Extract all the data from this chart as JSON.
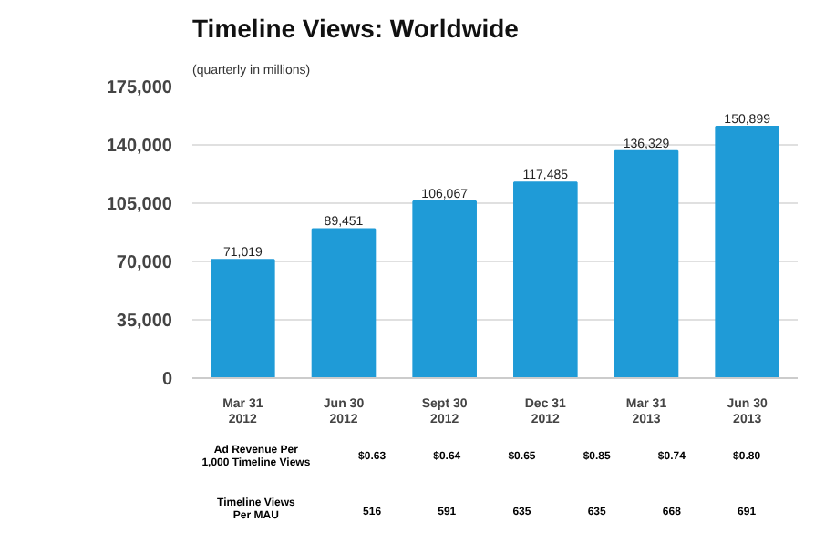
{
  "chart_data": {
    "type": "bar",
    "title": "Timeline Views: Worldwide",
    "subtitle": "(quarterly in millions)",
    "categories": [
      "Mar 31\n2012",
      "Jun 30\n2012",
      "Sept 30\n2012",
      "Dec 31\n2012",
      "Mar 31\n2013",
      "Jun 30\n2013"
    ],
    "values": [
      71019,
      89451,
      106067,
      117485,
      136329,
      150899
    ],
    "color": "#1f9bd7",
    "ylim": [
      0,
      175000
    ],
    "yticks": [
      0,
      {
        "value": 35000,
        "label": "35,000"
      },
      {
        "value": 70000,
        "label": "70,000"
      },
      {
        "value": 105000,
        "label": "105,000"
      },
      {
        "value": 140000,
        "label": "140,000"
      },
      {
        "value": 175000,
        "label": "175,000"
      }
    ],
    "grid": "y",
    "value_labels": [
      "71,019",
      "89,451",
      "106,067",
      "117,485",
      "136,329",
      "150,899"
    ],
    "annotations": [
      "Ad Revenue Per\n1,000 Timeline Views",
      "$0.63",
      "$0.64",
      "$0.65",
      "$0.85",
      "$0.74",
      "$0.80",
      "Timeline Views\nPer MAU",
      "516",
      "591",
      "635",
      "635",
      "668",
      "691"
    ]
  }
}
